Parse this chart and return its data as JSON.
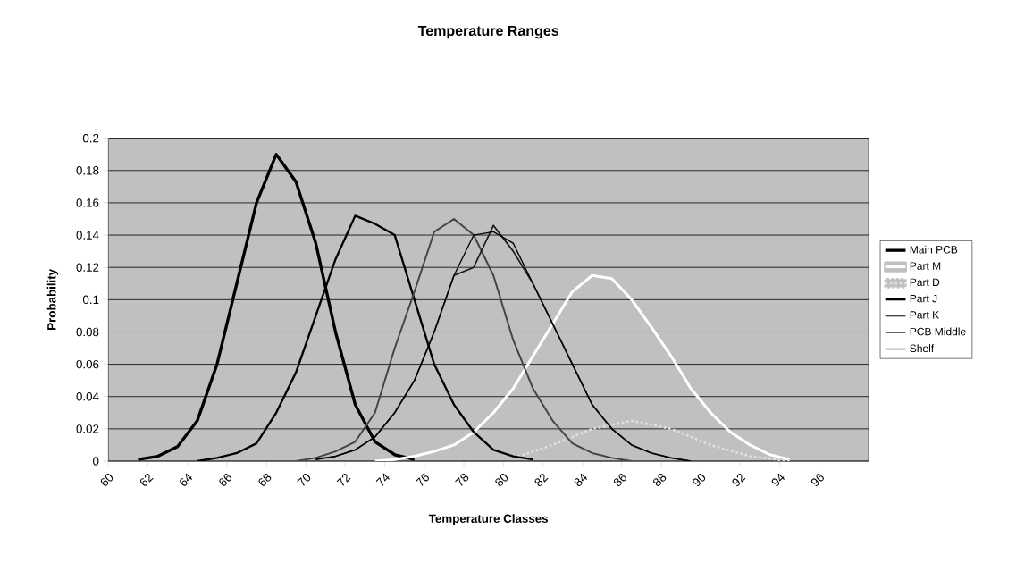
{
  "chart_data": {
    "type": "line",
    "title": "Temperature Ranges",
    "xlabel": "Temperature Classes",
    "ylabel": "Probability",
    "xlim": [
      60,
      98.5
    ],
    "ylim": [
      0,
      0.2
    ],
    "xticks": [
      60,
      62,
      64,
      66,
      68,
      70,
      72,
      74,
      76,
      78,
      80,
      82,
      84,
      86,
      88,
      90,
      92,
      94,
      96
    ],
    "yticks": [
      0,
      0.02,
      0.04,
      0.06,
      0.08,
      0.1,
      0.12,
      0.14,
      0.16,
      0.18,
      0.2
    ],
    "grid": "y",
    "legend": "right",
    "marker": "none",
    "line_style": "solid",
    "series": [
      {
        "name": "Main PCB",
        "color": "#000000",
        "x": [
          61.5,
          62.5,
          63.5,
          64.5,
          65.5,
          66.5,
          67.5,
          68.5,
          69.5,
          70.5,
          71.5,
          72.5,
          73.5,
          74.5,
          75.5
        ],
        "values": [
          0.001,
          0.003,
          0.009,
          0.025,
          0.06,
          0.11,
          0.16,
          0.19,
          0.173,
          0.135,
          0.08,
          0.035,
          0.012,
          0.004,
          0.001
        ]
      },
      {
        "name": "Part M",
        "color": "#ffffff",
        "x": [
          73.5,
          74.5,
          75.5,
          76.5,
          77.5,
          78.5,
          79.5,
          80.5,
          81.5,
          82.5,
          83.5,
          84.5,
          85.5,
          86.5,
          87.5,
          88.5,
          89.5,
          90.5,
          91.5,
          92.5,
          93.5,
          94.5
        ],
        "values": [
          0,
          0.001,
          0.003,
          0.006,
          0.01,
          0.018,
          0.03,
          0.045,
          0.065,
          0.085,
          0.105,
          0.115,
          0.113,
          0.1,
          0.083,
          0.065,
          0.045,
          0.03,
          0.018,
          0.01,
          0.004,
          0.001
        ]
      },
      {
        "name": "Part D",
        "color": "#e0e0e0",
        "line_style": "dotted",
        "x": [
          80.5,
          82.5,
          84.5,
          86.5,
          88.5,
          90.5,
          92.5,
          94.5
        ],
        "values": [
          0.002,
          0.01,
          0.02,
          0.025,
          0.02,
          0.01,
          0.003,
          0
        ]
      },
      {
        "name": "Part J",
        "color": "#000000",
        "x": [
          64.5,
          65.5,
          66.5,
          67.5,
          68.5,
          69.5,
          70.5,
          71.5,
          72.5,
          73.5,
          74.5,
          75.5,
          76.5,
          77.5,
          78.5,
          79.5,
          80.5,
          81.5
        ],
        "values": [
          0,
          0.002,
          0.005,
          0.011,
          0.03,
          0.055,
          0.09,
          0.125,
          0.152,
          0.147,
          0.14,
          0.1,
          0.06,
          0.035,
          0.018,
          0.007,
          0.003,
          0.001
        ]
      },
      {
        "name": "Part K",
        "color": "#444444",
        "x": [
          69.5,
          70.5,
          71.5,
          72.5,
          73.5,
          74.5,
          75.5,
          76.5,
          77.5,
          78.5,
          79.5,
          80.5,
          81.5,
          82.5,
          83.5,
          84.5,
          85.5,
          86.5
        ],
        "values": [
          0,
          0.002,
          0.006,
          0.012,
          0.03,
          0.07,
          0.105,
          0.142,
          0.15,
          0.14,
          0.115,
          0.075,
          0.045,
          0.025,
          0.011,
          0.005,
          0.002,
          0
        ]
      },
      {
        "name": "PCB Middle",
        "color": "#1a1a1a",
        "x": [
          70.5,
          71.5,
          72.5,
          73.5,
          74.5,
          75.5,
          76.5,
          77.5,
          78.5,
          79.5,
          80.5,
          81.5,
          82.5,
          83.5,
          84.5,
          85.5,
          86.5,
          87.5,
          88.5,
          89.5
        ],
        "values": [
          0.001,
          0.003,
          0.007,
          0.015,
          0.03,
          0.05,
          0.08,
          0.115,
          0.12,
          0.146,
          0.13,
          0.11,
          0.085,
          0.06,
          0.035,
          0.02,
          0.01,
          0.005,
          0.002,
          0
        ]
      },
      {
        "name": "Shelf",
        "color": "#000000",
        "x": [
          70.5,
          71.5,
          72.5,
          73.5,
          74.5,
          75.5,
          76.5,
          77.5,
          78.5,
          79.5,
          80.5,
          81.5,
          82.5,
          83.5,
          84.5,
          85.5,
          86.5,
          87.5,
          88.5,
          89.5
        ],
        "values": [
          0.001,
          0.003,
          0.007,
          0.015,
          0.03,
          0.05,
          0.08,
          0.115,
          0.14,
          0.142,
          0.135,
          0.11,
          0.085,
          0.06,
          0.035,
          0.02,
          0.01,
          0.005,
          0.002,
          0
        ]
      }
    ]
  }
}
